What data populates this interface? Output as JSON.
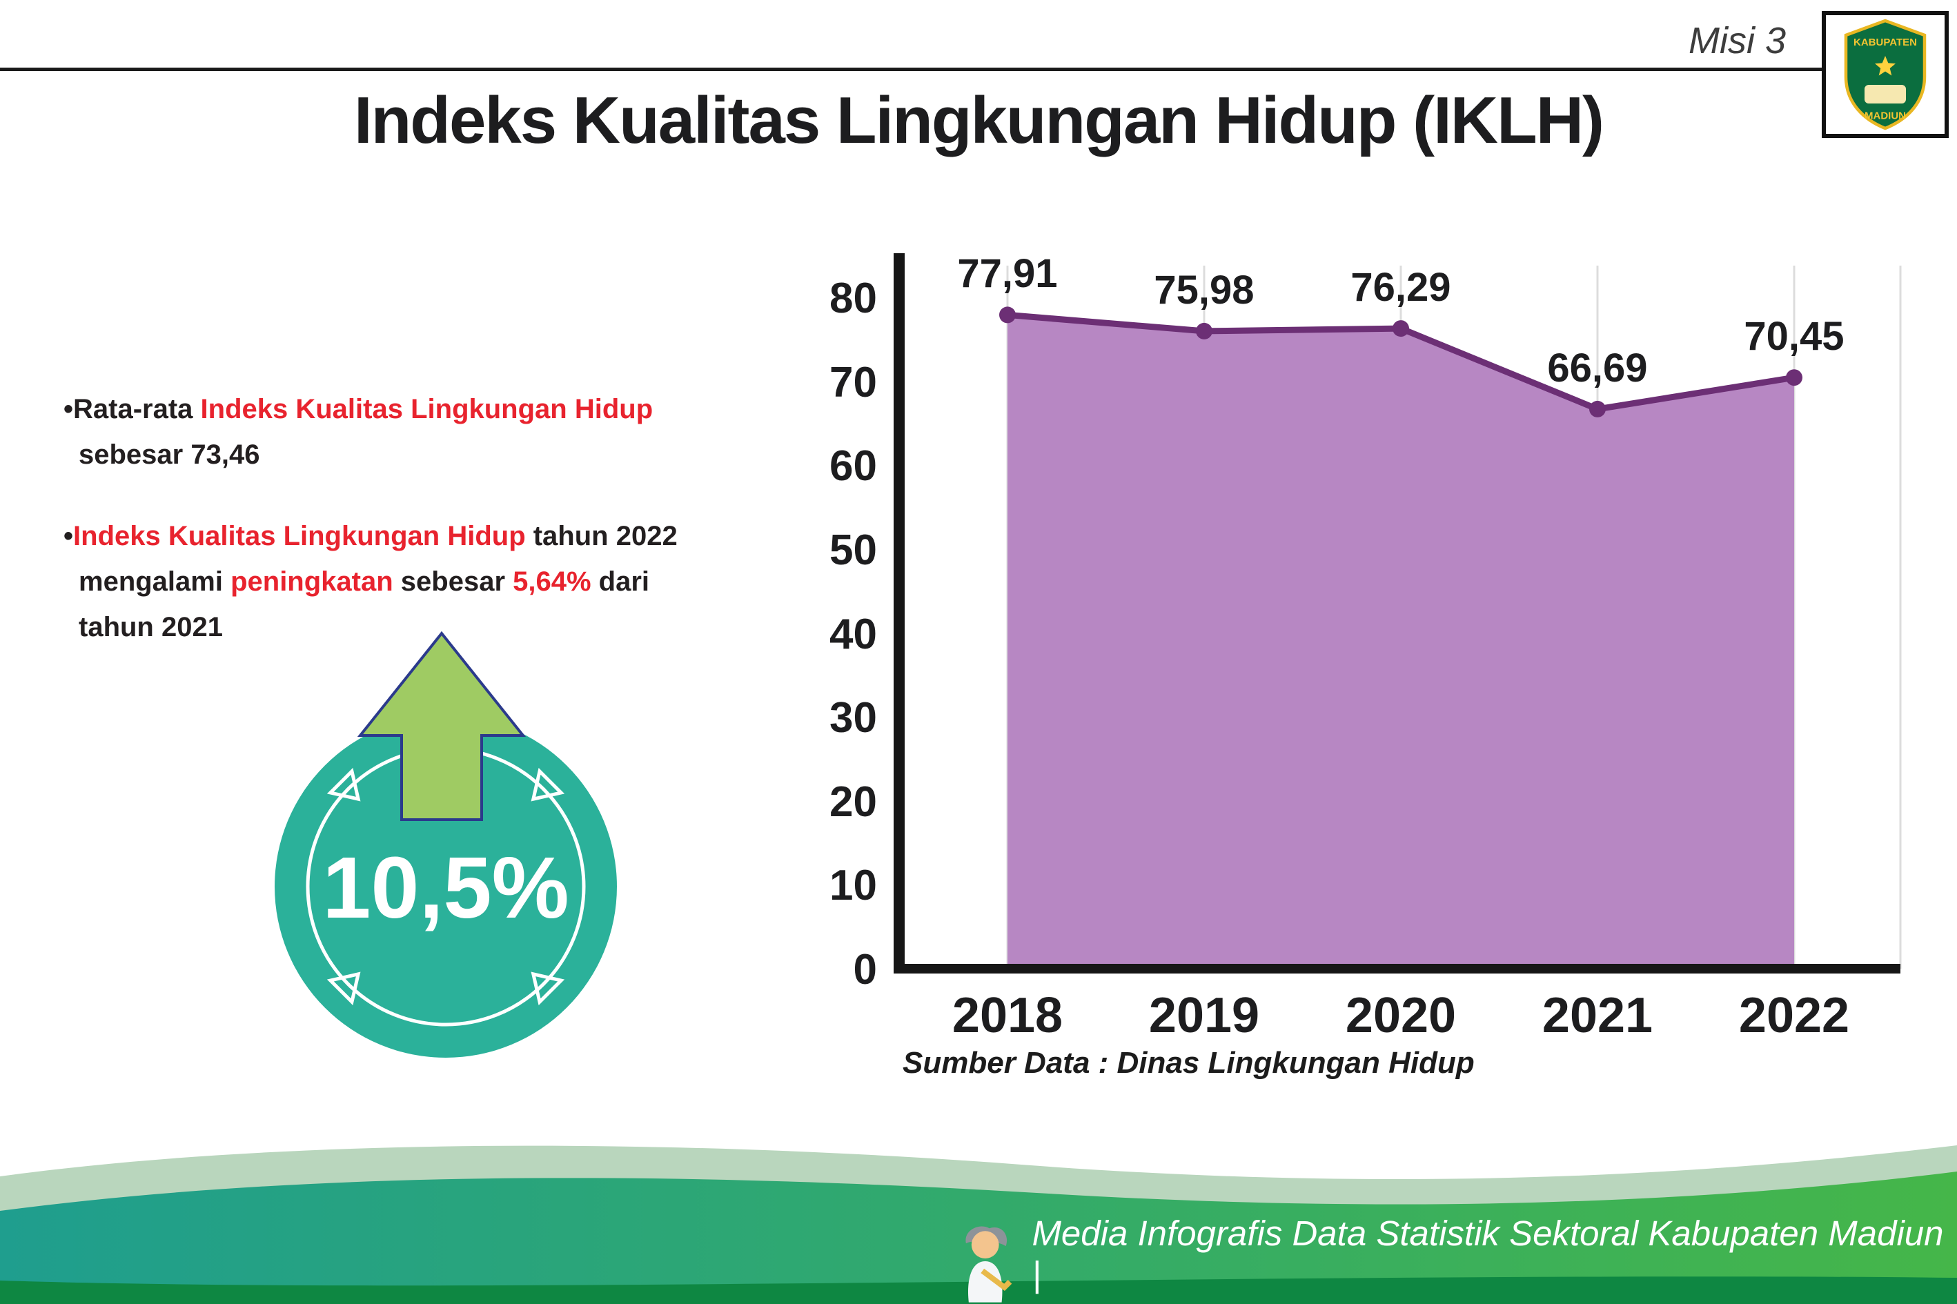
{
  "header": {
    "misi_label": "Misi 3",
    "title": "Indeks Kualitas Lingkungan Hidup (IKLH)"
  },
  "logo": {
    "kabupaten": "KABUPATEN",
    "madiun": "MADIUN"
  },
  "bullets": {
    "marker": "•",
    "b1": {
      "l1_black": "Rata-rata ",
      "l1_red": "Indeks Kualitas Lingkungan Hidup",
      "l2": "sebesar 73,46"
    },
    "b2": {
      "l1_red": "Indeks Kualitas Lingkungan Hidup",
      "l1_black": " tahun 2022",
      "l2_b1": "mengalami ",
      "l2_red1": "peningkatan",
      "l2_b2": " sebesar ",
      "l2_red2": "5,64%",
      "l2_b3": " dari",
      "l3": "tahun 2021"
    }
  },
  "badge": {
    "value": "10,5%"
  },
  "chart_data": {
    "type": "area",
    "categories": [
      "2018",
      "2019",
      "2020",
      "2021",
      "2022"
    ],
    "values": [
      77.91,
      75.98,
      76.29,
      66.69,
      70.45
    ],
    "value_labels": [
      "77,91",
      "75,98",
      "76,29",
      "66,69",
      "70,45"
    ],
    "ylim": [
      0,
      80
    ],
    "ytick_step": 10,
    "yticks": [
      0,
      10,
      20,
      30,
      40,
      50,
      60,
      70,
      80
    ],
    "grid": "vertical-only",
    "legend": "none",
    "area_color": "#b787c3",
    "line_color": "#6c2f75",
    "source": "Sumber Data : Dinas Lingkungan Hidup"
  },
  "footer": {
    "credit": "Media Infografis Data Statistik Sektoral Kabupaten Madiun |"
  },
  "colors": {
    "accent_red": "#e8232e",
    "text_dark": "#231f20",
    "badge_teal": "#2bb19a",
    "arrow_green": "#9fcb63",
    "arrow_outline_navy": "#2b3a8c",
    "band_teal": "#1f9e8e",
    "band_green": "#45b649",
    "band_dark_green": "#0e8742",
    "band_pale": "#b9d6bd"
  }
}
